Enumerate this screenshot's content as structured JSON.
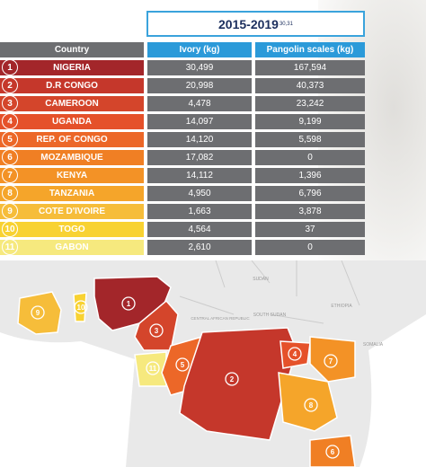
{
  "header": {
    "period": "2015-2019",
    "footnote": "30,31"
  },
  "table": {
    "headers": {
      "country": "Country",
      "ivory": "Ivory (kg)",
      "scales": "Pangolin scales (kg)"
    },
    "rows": [
      {
        "rank": "1",
        "country": "NIGERIA",
        "ivory": "30,499",
        "scales": "167,594",
        "color": "#a3262a"
      },
      {
        "rank": "2",
        "country": "D.R CONGO",
        "ivory": "20,998",
        "scales": "40,373",
        "color": "#c5372b"
      },
      {
        "rank": "3",
        "country": "CAMEROON",
        "ivory": "4,478",
        "scales": "23,242",
        "color": "#d4452b"
      },
      {
        "rank": "4",
        "country": "UGANDA",
        "ivory": "14,097",
        "scales": "9,199",
        "color": "#e5512a"
      },
      {
        "rank": "5",
        "country": "REP. OF CONGO",
        "ivory": "14,120",
        "scales": "5,598",
        "color": "#ec6728"
      },
      {
        "rank": "6",
        "country": "MOZAMBIQUE",
        "ivory": "17,082",
        "scales": "0",
        "color": "#f07f24"
      },
      {
        "rank": "7",
        "country": "KENYA",
        "ivory": "14,112",
        "scales": "1,396",
        "color": "#f39226"
      },
      {
        "rank": "8",
        "country": "TANZANIA",
        "ivory": "4,950",
        "scales": "6,796",
        "color": "#f5a52a"
      },
      {
        "rank": "9",
        "country": "COTE D'IVOIRE",
        "ivory": "1,663",
        "scales": "3,878",
        "color": "#f6bd3a"
      },
      {
        "rank": "10",
        "country": "TOGO",
        "ivory": "4,564",
        "scales": "37",
        "color": "#f8d232"
      },
      {
        "rank": "11",
        "country": "GABON",
        "ivory": "2,610",
        "scales": "0",
        "color": "#f6e97e"
      }
    ]
  },
  "map": {
    "labels": [
      "SUDAN",
      "SOUTH SUDAN",
      "CENTRAL AFRICAN REPUBLIC",
      "ETHIOPIA",
      "SOMALIA"
    ],
    "markers": [
      "1",
      "2",
      "3",
      "4",
      "5",
      "6",
      "7",
      "8",
      "9",
      "10",
      "11"
    ]
  }
}
